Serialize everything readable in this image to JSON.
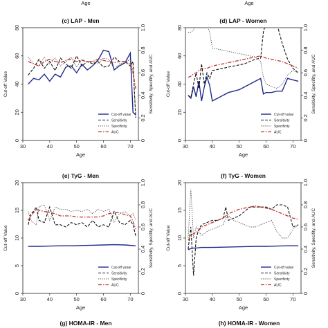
{
  "top_xlabel": "Age",
  "legend_labels": [
    "Cut-off value",
    "Sensitivity",
    "Specificity",
    "AUC"
  ],
  "colors": {
    "cutoff": "#1f2a8a",
    "sensitivity": "#111111",
    "specificity": "#444444",
    "auc": "#c0312b"
  },
  "chart_data": [
    {
      "type": "line",
      "title": "(c) LAP - Men",
      "xlabel": "Age",
      "ylabel": "Cut-off Value",
      "y2label": "Sensitivity, Specifity, and AUC",
      "xlim": [
        30,
        73
      ],
      "ylim": [
        0,
        80
      ],
      "y2lim": [
        0,
        1
      ],
      "xticks": [
        30,
        40,
        50,
        60,
        70
      ],
      "yticks": [
        0,
        20,
        40,
        60,
        80
      ],
      "y2ticks": [
        0,
        0.2,
        0.4,
        0.6,
        0.8,
        1.0
      ],
      "legend": "bottom-right",
      "series": [
        {
          "name": "Cut-off value",
          "axis": "left",
          "x": [
            32,
            34,
            36,
            38,
            40,
            42,
            44,
            46,
            48,
            50,
            52,
            54,
            56,
            58,
            60,
            62,
            64,
            66,
            68,
            70,
            71,
            72
          ],
          "y": [
            40,
            44,
            43,
            47,
            42,
            47,
            45,
            52,
            53,
            48,
            54,
            50,
            53,
            57,
            64,
            63,
            50,
            53,
            55,
            62,
            20,
            18
          ]
        },
        {
          "name": "Sensitivity",
          "axis": "right",
          "x": [
            32,
            34,
            36,
            38,
            40,
            42,
            44,
            46,
            48,
            50,
            52,
            54,
            56,
            58,
            60,
            62,
            64,
            66,
            68,
            70,
            71,
            72
          ],
          "y": [
            0.58,
            0.64,
            0.72,
            0.64,
            0.7,
            0.62,
            0.73,
            0.68,
            0.64,
            0.75,
            0.66,
            0.7,
            0.68,
            0.7,
            0.65,
            0.66,
            0.74,
            0.7,
            0.7,
            0.66,
            0.7,
            0.2
          ]
        },
        {
          "name": "Specificity",
          "axis": "right",
          "x": [
            32,
            34,
            36,
            38,
            40,
            42,
            44,
            46,
            48,
            50,
            52,
            54,
            56,
            58,
            60,
            62,
            64,
            66,
            68,
            70,
            71,
            72
          ],
          "y": [
            0.74,
            0.68,
            0.66,
            0.74,
            0.68,
            0.73,
            0.66,
            0.7,
            0.74,
            0.65,
            0.72,
            0.69,
            0.7,
            0.68,
            0.73,
            0.72,
            0.63,
            0.68,
            0.69,
            0.72,
            0.62,
            0.24
          ]
        },
        {
          "name": "AUC",
          "axis": "right",
          "x": [
            32,
            34,
            36,
            38,
            40,
            42,
            44,
            46,
            48,
            50,
            52,
            54,
            56,
            58,
            60,
            62,
            64,
            66,
            68,
            70,
            71,
            72
          ],
          "y": [
            0.7,
            0.68,
            0.66,
            0.7,
            0.72,
            0.7,
            0.69,
            0.71,
            0.72,
            0.7,
            0.71,
            0.7,
            0.7,
            0.72,
            0.71,
            0.7,
            0.69,
            0.7,
            0.7,
            0.68,
            0.6,
            0.46
          ]
        }
      ]
    },
    {
      "type": "line",
      "title": "(d) LAP - Women",
      "xlabel": "Age",
      "ylabel": "Cut-off Value",
      "y2label": "Sensitivity, Specifity, and AUC",
      "xlim": [
        30,
        73
      ],
      "ylim": [
        0,
        80
      ],
      "y2lim": [
        0,
        1
      ],
      "xticks": [
        30,
        40,
        50,
        60,
        70
      ],
      "yticks": [
        0,
        20,
        40,
        60,
        80
      ],
      "y2ticks": [
        0,
        0.2,
        0.4,
        0.6,
        0.8,
        1.0
      ],
      "legend": "bottom-right",
      "series": [
        {
          "name": "Cut-off value",
          "axis": "left",
          "x": [
            31,
            32,
            33,
            34,
            35,
            36,
            37,
            38,
            39,
            40,
            42,
            44,
            46,
            48,
            50,
            52,
            54,
            56,
            58,
            59,
            60,
            62,
            64,
            66,
            68,
            70,
            72
          ],
          "y": [
            32,
            30,
            38,
            31,
            42,
            28,
            38,
            45,
            39,
            28,
            30,
            32,
            34,
            35,
            36,
            38,
            40,
            42,
            44,
            33,
            34,
            34,
            35,
            35,
            44,
            43,
            42
          ]
        },
        {
          "name": "Sensitivity",
          "axis": "right",
          "x": [
            31,
            32,
            33,
            34,
            35,
            36,
            37,
            38,
            39,
            40,
            42,
            44,
            46,
            48,
            50,
            52,
            54,
            56,
            58,
            59,
            60,
            62,
            64,
            66,
            68,
            70,
            72
          ],
          "y": [
            0.4,
            0.38,
            0.5,
            0.6,
            0.46,
            0.68,
            0.5,
            0.6,
            0.55,
            0.62,
            0.63,
            0.64,
            0.65,
            0.66,
            0.67,
            0.68,
            0.7,
            0.72,
            0.73,
            0.96,
            1.05,
            1.05,
            1.04,
            0.86,
            0.72,
            0.64,
            0.6
          ]
        },
        {
          "name": "Specificity",
          "axis": "right",
          "x": [
            31,
            32,
            33,
            34,
            35,
            36,
            37,
            38,
            39,
            40,
            42,
            44,
            46,
            48,
            50,
            52,
            54,
            56,
            58,
            59,
            60,
            62,
            64,
            66,
            68,
            70,
            72
          ],
          "y": [
            0.96,
            0.96,
            0.98,
            1.06,
            1.1,
            1.06,
            1.08,
            1.02,
            0.96,
            0.82,
            0.81,
            0.8,
            0.79,
            0.78,
            0.77,
            0.76,
            0.75,
            0.74,
            0.7,
            0.56,
            0.5,
            0.48,
            0.46,
            0.5,
            0.58,
            0.62,
            0.6
          ]
        },
        {
          "name": "AUC",
          "axis": "right",
          "x": [
            31,
            32,
            33,
            34,
            35,
            36,
            37,
            38,
            39,
            40,
            42,
            44,
            46,
            48,
            50,
            52,
            54,
            56,
            58,
            59,
            60,
            62,
            64,
            66,
            68,
            70,
            72
          ],
          "y": [
            0.56,
            0.57,
            0.59,
            0.6,
            0.62,
            0.64,
            0.64,
            0.64,
            0.65,
            0.66,
            0.67,
            0.68,
            0.69,
            0.7,
            0.71,
            0.72,
            0.73,
            0.74,
            0.75,
            0.74,
            0.73,
            0.72,
            0.71,
            0.7,
            0.68,
            0.66,
            0.64
          ]
        }
      ]
    },
    {
      "type": "line",
      "title": "(e) TyG - Men",
      "xlabel": "Age",
      "ylabel": "Cut-off Value",
      "y2label": "Sensitivity, Specifity, and AUC",
      "xlim": [
        30,
        73
      ],
      "ylim": [
        0,
        20
      ],
      "y2lim": [
        0,
        1
      ],
      "xticks": [
        30,
        40,
        50,
        60,
        70
      ],
      "yticks": [
        0,
        5,
        10,
        15,
        20
      ],
      "y2ticks": [
        0,
        0.2,
        0.4,
        0.6,
        0.8,
        1.0
      ],
      "legend": "bottom-right",
      "series": [
        {
          "name": "Cut-off value",
          "axis": "left",
          "x": [
            32,
            36,
            40,
            44,
            48,
            52,
            56,
            60,
            64,
            68,
            72
          ],
          "y": [
            8.5,
            8.5,
            8.55,
            8.6,
            8.6,
            8.65,
            8.7,
            8.75,
            8.8,
            8.75,
            8.6
          ]
        },
        {
          "name": "Sensitivity",
          "axis": "right",
          "x": [
            32,
            33,
            34,
            35,
            36,
            38,
            40,
            42,
            44,
            46,
            48,
            50,
            52,
            54,
            56,
            58,
            60,
            62,
            64,
            66,
            68,
            70,
            71,
            72
          ],
          "y": [
            0.62,
            0.72,
            0.74,
            0.78,
            0.66,
            0.64,
            0.78,
            0.62,
            0.62,
            0.6,
            0.64,
            0.62,
            0.64,
            0.6,
            0.66,
            0.6,
            0.62,
            0.6,
            0.74,
            0.64,
            0.62,
            0.66,
            0.62,
            0.52
          ]
        },
        {
          "name": "Specificity",
          "axis": "right",
          "x": [
            32,
            33,
            34,
            35,
            36,
            38,
            40,
            42,
            44,
            46,
            48,
            50,
            52,
            54,
            56,
            58,
            60,
            62,
            64,
            66,
            68,
            70,
            71,
            72
          ],
          "y": [
            0.74,
            0.66,
            0.64,
            0.62,
            0.78,
            0.8,
            0.66,
            0.78,
            0.76,
            0.76,
            0.74,
            0.75,
            0.74,
            0.76,
            0.72,
            0.76,
            0.74,
            0.76,
            0.64,
            0.72,
            0.74,
            0.7,
            0.72,
            0.66
          ]
        },
        {
          "name": "AUC",
          "axis": "right",
          "x": [
            32,
            33,
            34,
            35,
            36,
            38,
            40,
            42,
            44,
            46,
            48,
            50,
            52,
            54,
            56,
            58,
            60,
            62,
            64,
            66,
            68,
            70,
            71,
            72
          ],
          "y": [
            0.66,
            0.7,
            0.73,
            0.76,
            0.75,
            0.74,
            0.73,
            0.72,
            0.7,
            0.7,
            0.7,
            0.69,
            0.69,
            0.69,
            0.69,
            0.69,
            0.7,
            0.72,
            0.73,
            0.73,
            0.71,
            0.7,
            0.65,
            0.58
          ]
        }
      ]
    },
    {
      "type": "line",
      "title": "(f) TyG - Women",
      "xlabel": "Age",
      "ylabel": "Cut-off Value",
      "y2label": "Sensitivity, Specifity, and AUC",
      "xlim": [
        30,
        73
      ],
      "ylim": [
        0,
        20
      ],
      "y2lim": [
        0,
        1
      ],
      "xticks": [
        30,
        40,
        50,
        60,
        70
      ],
      "yticks": [
        0,
        5,
        10,
        15,
        20
      ],
      "y2ticks": [
        0,
        0.2,
        0.4,
        0.6,
        0.8,
        1.0
      ],
      "legend": "bottom-right",
      "series": [
        {
          "name": "Cut-off value",
          "axis": "left",
          "x": [
            31,
            32,
            33,
            34,
            36,
            40,
            44,
            48,
            52,
            56,
            60,
            64,
            68,
            72
          ],
          "y": [
            7.9,
            8.1,
            8.2,
            8.2,
            8.3,
            8.3,
            8.35,
            8.4,
            8.45,
            8.5,
            8.5,
            8.55,
            8.6,
            8.6
          ]
        },
        {
          "name": "Sensitivity",
          "axis": "right",
          "x": [
            31,
            32,
            33,
            34,
            35,
            36,
            38,
            40,
            42,
            44,
            45,
            46,
            48,
            50,
            52,
            54,
            56,
            58,
            60,
            62,
            64,
            66,
            68,
            70,
            72
          ],
          "y": [
            0.4,
            0.6,
            0.16,
            0.5,
            0.58,
            0.62,
            0.64,
            0.66,
            0.66,
            0.68,
            0.78,
            0.66,
            0.68,
            0.7,
            0.74,
            0.78,
            0.78,
            0.78,
            0.78,
            0.76,
            0.8,
            0.8,
            0.78,
            0.6,
            0.62
          ]
        },
        {
          "name": "Specificity",
          "axis": "right",
          "x": [
            31,
            32,
            33,
            34,
            35,
            36,
            38,
            40,
            42,
            44,
            45,
            46,
            48,
            50,
            52,
            54,
            56,
            58,
            60,
            62,
            64,
            66,
            68,
            70,
            72
          ],
          "y": [
            0.5,
            0.94,
            0.5,
            0.6,
            0.56,
            0.52,
            0.56,
            0.58,
            0.6,
            0.62,
            0.68,
            0.7,
            0.66,
            0.64,
            0.62,
            0.6,
            0.6,
            0.62,
            0.64,
            0.66,
            0.56,
            0.5,
            0.5,
            0.58,
            0.62
          ]
        },
        {
          "name": "AUC",
          "axis": "right",
          "x": [
            31,
            32,
            33,
            34,
            35,
            36,
            38,
            40,
            42,
            44,
            45,
            46,
            48,
            50,
            52,
            54,
            56,
            58,
            60,
            62,
            64,
            66,
            68,
            70,
            72
          ],
          "y": [
            0.48,
            0.52,
            0.54,
            0.55,
            0.57,
            0.6,
            0.62,
            0.64,
            0.66,
            0.68,
            0.7,
            0.72,
            0.74,
            0.76,
            0.77,
            0.78,
            0.79,
            0.78,
            0.77,
            0.76,
            0.74,
            0.72,
            0.7,
            0.68,
            0.67
          ]
        }
      ]
    }
  ],
  "bottom_titles": [
    "(g) HOMA-IR - Men",
    "(h) HOMA-IR - Women"
  ]
}
